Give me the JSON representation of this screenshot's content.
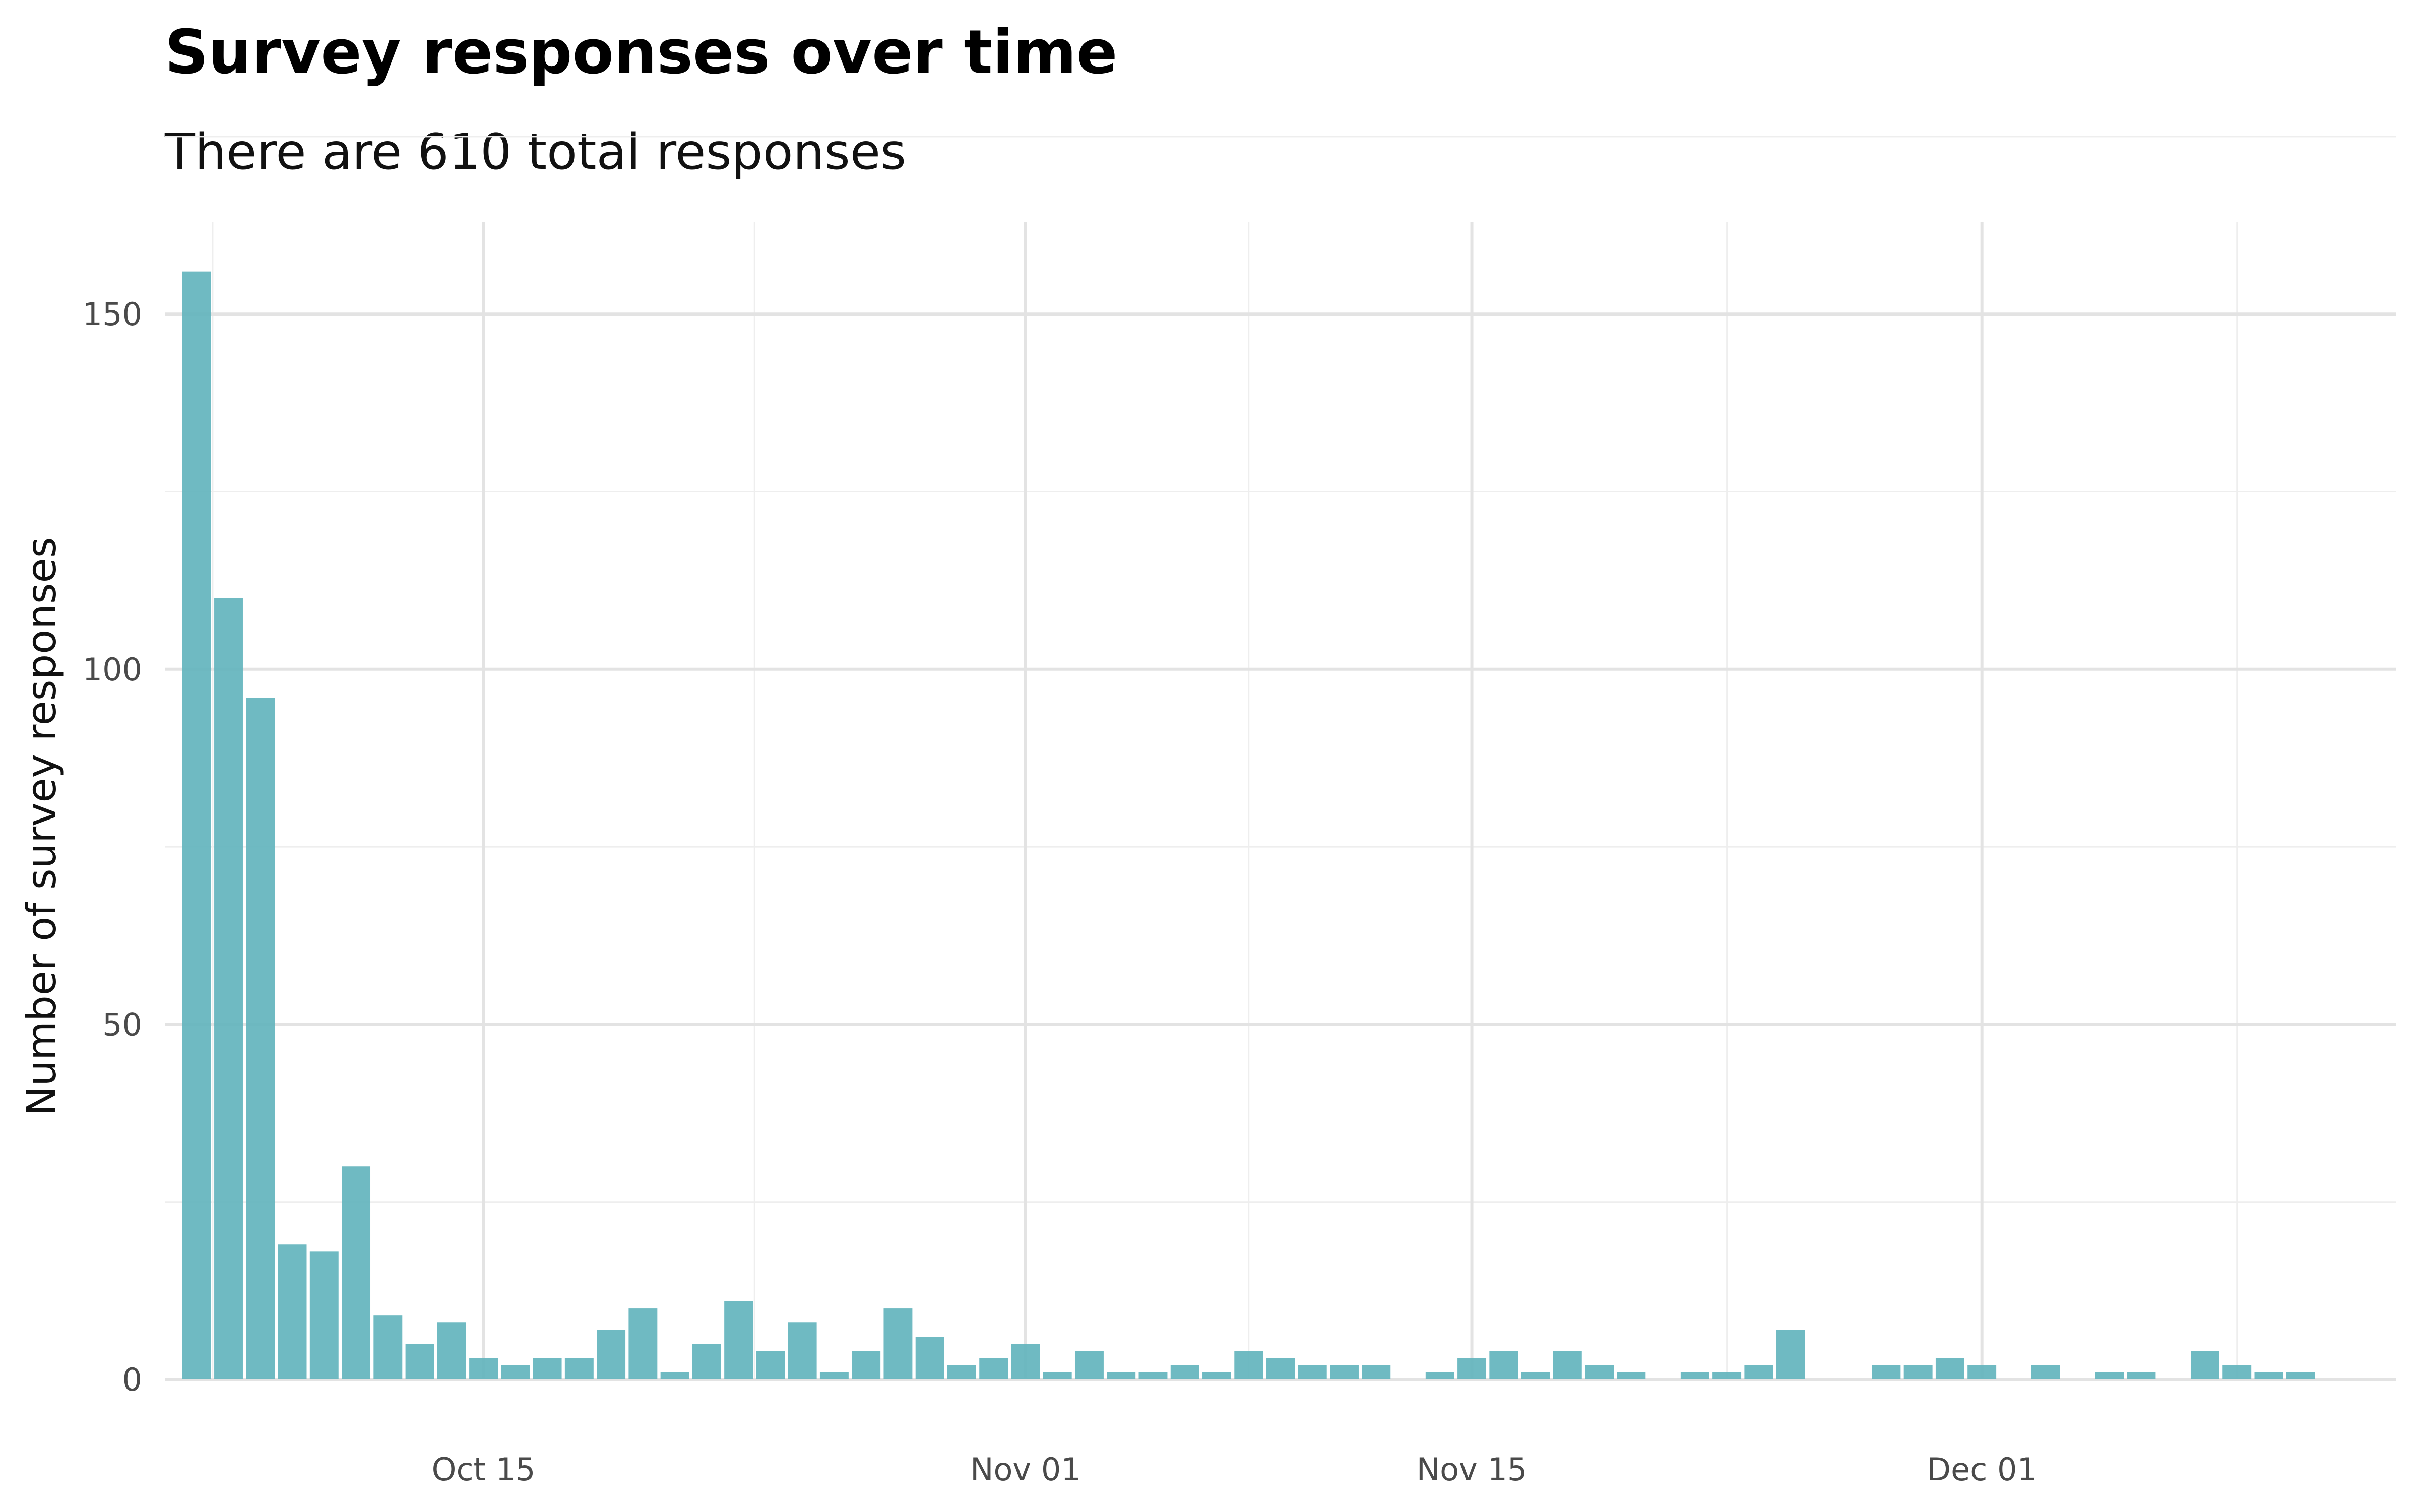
{
  "chart_data": {
    "type": "bar",
    "title": "Survey responses over time",
    "subtitle": "There are 610 total responses",
    "xlabel": "",
    "ylabel": "Number of survey responses",
    "ylim": [
      0,
      163
    ],
    "yticks": [
      0,
      50,
      100,
      150
    ],
    "xticks": [
      {
        "date": "2022-10-15",
        "label": "Oct 15"
      },
      {
        "date": "2022-11-01",
        "label": "Nov 01"
      },
      {
        "date": "2022-11-15",
        "label": "Nov 15"
      },
      {
        "date": "2022-12-01",
        "label": "Dec 01"
      }
    ],
    "xlim": [
      "2022-10-05",
      "2022-12-14"
    ],
    "grid": true,
    "bar_color": "#5fb3bb",
    "x": [
      "2022-10-06",
      "2022-10-07",
      "2022-10-08",
      "2022-10-09",
      "2022-10-10",
      "2022-10-11",
      "2022-10-12",
      "2022-10-13",
      "2022-10-14",
      "2022-10-15",
      "2022-10-16",
      "2022-10-17",
      "2022-10-18",
      "2022-10-19",
      "2022-10-20",
      "2022-10-21",
      "2022-10-22",
      "2022-10-23",
      "2022-10-24",
      "2022-10-25",
      "2022-10-26",
      "2022-10-27",
      "2022-10-28",
      "2022-10-29",
      "2022-10-30",
      "2022-10-31",
      "2022-11-01",
      "2022-11-02",
      "2022-11-03",
      "2022-11-04",
      "2022-11-05",
      "2022-11-06",
      "2022-11-07",
      "2022-11-08",
      "2022-11-09",
      "2022-11-10",
      "2022-11-11",
      "2022-11-12",
      "2022-11-13",
      "2022-11-14",
      "2022-11-15",
      "2022-11-16",
      "2022-11-17",
      "2022-11-18",
      "2022-11-19",
      "2022-11-20",
      "2022-11-21",
      "2022-11-22",
      "2022-11-23",
      "2022-11-24",
      "2022-11-25",
      "2022-11-26",
      "2022-11-27",
      "2022-11-28",
      "2022-11-29",
      "2022-11-30",
      "2022-12-01",
      "2022-12-02",
      "2022-12-03",
      "2022-12-04",
      "2022-12-05",
      "2022-12-06",
      "2022-12-07",
      "2022-12-08",
      "2022-12-09",
      "2022-12-10"
    ],
    "values": [
      156,
      110,
      96,
      19,
      18,
      30,
      9,
      5,
      8,
      3,
      2,
      3,
      3,
      7,
      10,
      1,
      5,
      11,
      4,
      8,
      1,
      4,
      10,
      6,
      2,
      3,
      5,
      1,
      4,
      1,
      1,
      2,
      1,
      4,
      3,
      2,
      2,
      2,
      0,
      1,
      3,
      4,
      1,
      4,
      2,
      1,
      0,
      1,
      1,
      2,
      7,
      0,
      0,
      2,
      2,
      3,
      2,
      0,
      2,
      0,
      1,
      1,
      0,
      4,
      2,
      1
    ],
    "last_value": 1,
    "last_date": "2022-12-11"
  }
}
